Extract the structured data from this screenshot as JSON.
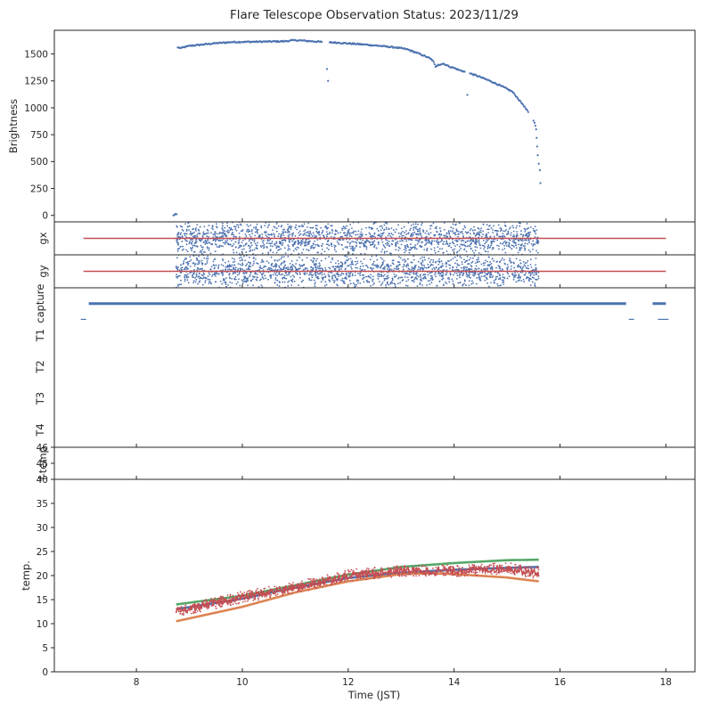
{
  "chart_data": {
    "title": "Flare Telescope Observation Status: 2023/11/29",
    "xlabel": "Time (JST)",
    "xlim": [
      6.45,
      18.55
    ],
    "xticks": [
      8,
      10,
      12,
      14,
      16,
      18
    ],
    "colors": {
      "blue": "#4c72b0",
      "orange": "#dd8452",
      "green": "#55a868",
      "red": "#c44e52"
    },
    "panels": [
      {
        "id": "brightness",
        "type": "scatter",
        "ylabel": "Brightness",
        "ylim": [
          -60,
          1720
        ],
        "yticks": [
          0,
          250,
          500,
          750,
          1000,
          1250,
          1500
        ],
        "series": [
          {
            "color": "blue",
            "points": [
              [
                8.7,
                0
              ],
              [
                8.72,
                5
              ],
              [
                8.74,
                15
              ],
              [
                8.76,
                10
              ],
              [
                8.78,
                1560
              ],
              [
                8.85,
                1555
              ],
              [
                8.95,
                1570
              ],
              [
                9.0,
                1575
              ],
              [
                9.2,
                1585
              ],
              [
                9.5,
                1600
              ],
              [
                9.8,
                1610
              ],
              [
                10.0,
                1612
              ],
              [
                10.3,
                1614
              ],
              [
                10.5,
                1615
              ],
              [
                10.8,
                1618
              ],
              [
                11.0,
                1628
              ],
              [
                11.2,
                1622
              ],
              [
                11.5,
                1612
              ],
              [
                11.6,
                1360
              ],
              [
                11.62,
                1250
              ],
              [
                11.65,
                1608
              ],
              [
                11.8,
                1605
              ],
              [
                12.0,
                1598
              ],
              [
                12.3,
                1588
              ],
              [
                12.6,
                1575
              ],
              [
                12.9,
                1560
              ],
              [
                13.1,
                1545
              ],
              [
                13.3,
                1510
              ],
              [
                13.5,
                1470
              ],
              [
                13.6,
                1440
              ],
              [
                13.65,
                1380
              ],
              [
                13.7,
                1400
              ],
              [
                13.8,
                1410
              ],
              [
                13.9,
                1385
              ],
              [
                14.0,
                1370
              ],
              [
                14.1,
                1350
              ],
              [
                14.2,
                1335
              ],
              [
                14.25,
                1120
              ],
              [
                14.3,
                1320
              ],
              [
                14.5,
                1285
              ],
              [
                14.7,
                1245
              ],
              [
                14.9,
                1200
              ],
              [
                15.1,
                1150
              ],
              [
                15.2,
                1090
              ],
              [
                15.3,
                1030
              ],
              [
                15.4,
                960
              ],
              [
                15.5,
                880
              ],
              [
                15.52,
                860
              ],
              [
                15.55,
                800
              ],
              [
                15.56,
                720
              ],
              [
                15.57,
                640
              ],
              [
                15.58,
                560
              ],
              [
                15.6,
                480
              ],
              [
                15.62,
                420
              ],
              [
                15.63,
                300
              ]
            ]
          }
        ]
      },
      {
        "id": "gx",
        "type": "scatter",
        "ylabel": "gx",
        "ylim": [
          -1,
          1
        ],
        "yticks": [],
        "series": [
          {
            "color": "blue",
            "kind": "noise",
            "range": [
              8.75,
              15.6
            ],
            "center": 0,
            "amplitude": 0.9,
            "count": 1700
          },
          {
            "color": "red",
            "kind": "line",
            "x": [
              7.0,
              18.0
            ],
            "y": [
              0,
              0
            ]
          }
        ]
      },
      {
        "id": "gy",
        "type": "scatter",
        "ylabel": "gy",
        "ylim": [
          -1,
          1
        ],
        "yticks": [],
        "series": [
          {
            "color": "blue",
            "kind": "noise",
            "range": [
              8.75,
              15.6
            ],
            "center": 0,
            "amplitude": 0.9,
            "count": 1700
          },
          {
            "color": "red",
            "kind": "line",
            "x": [
              7.0,
              18.0
            ],
            "y": [
              0,
              0
            ]
          }
        ]
      },
      {
        "id": "status",
        "type": "scatter",
        "ylabel": "",
        "ylim": [
          4.55,
          -0.5
        ],
        "categories": [
          "capture",
          "T1",
          "T2",
          "T3",
          "T4"
        ],
        "segments": [
          {
            "x": [
              7.1,
              17.25
            ],
            "y": 0,
            "color": "blue"
          },
          {
            "x": [
              6.95,
              7.05
            ],
            "y": 0.5,
            "color": "blue"
          },
          {
            "x": [
              17.3,
              17.4
            ],
            "y": 0.5,
            "color": "blue"
          },
          {
            "x": [
              17.85,
              18.05
            ],
            "y": 0.5,
            "color": "blue"
          },
          {
            "x": [
              17.75,
              18.0
            ],
            "y": 0,
            "color": "blue"
          }
        ]
      },
      {
        "id": "ftemp",
        "type": "scatter",
        "ylabel": "f-temp",
        "ylim": [
          44.0,
          46.0
        ],
        "yticks": [
          45,
          46
        ],
        "series": []
      },
      {
        "id": "temp",
        "type": "line",
        "ylabel": "temp.",
        "ylim": [
          0,
          40
        ],
        "yticks": [
          0,
          5,
          10,
          15,
          20,
          25,
          30,
          35,
          40
        ],
        "series": [
          {
            "color": "green",
            "x": [
              8.75,
              10,
              11,
              12,
              13,
              14,
              15,
              15.6
            ],
            "y": [
              14,
              15.8,
              18,
              20.2,
              21.8,
              22.6,
              23.2,
              23.3
            ]
          },
          {
            "color": "blue",
            "x": [
              8.75,
              10,
              11,
              12,
              13,
              14,
              15,
              15.6
            ],
            "y": [
              13,
              15.2,
              17.5,
              19.5,
              20.6,
              21.2,
              21.6,
              21.8
            ]
          },
          {
            "color": "orange",
            "x": [
              8.75,
              10,
              11,
              12,
              13,
              13.5,
              14,
              15,
              15.6
            ],
            "y": [
              10.5,
              13.5,
              16.5,
              18.8,
              20.3,
              20.5,
              20.3,
              19.6,
              18.8
            ]
          },
          {
            "color": "red",
            "x": [
              8.75,
              10,
              11,
              12,
              13,
              14,
              15,
              15.6
            ],
            "y": [
              12.5,
              15.5,
              17.5,
              20,
              21,
              21,
              21.5,
              20.5
            ],
            "noisy": true
          }
        ]
      }
    ]
  }
}
